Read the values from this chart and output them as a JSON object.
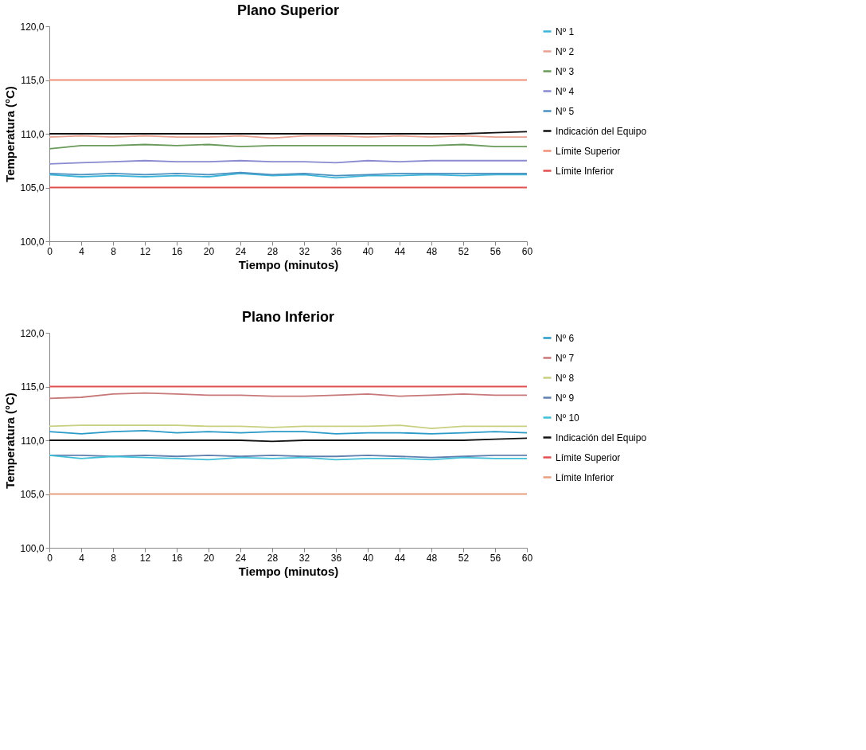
{
  "chart_data": [
    {
      "type": "line",
      "title": "Plano Superior",
      "xlabel": "Tiempo (minutos)",
      "ylabel": "Temperatura (°C)",
      "legend": "right",
      "grid": false,
      "x": [
        0,
        4,
        8,
        12,
        16,
        20,
        24,
        28,
        32,
        36,
        40,
        44,
        48,
        52,
        56,
        60
      ],
      "xlim": [
        0,
        60
      ],
      "xticks": [
        0,
        4,
        8,
        12,
        16,
        20,
        24,
        28,
        32,
        36,
        40,
        44,
        48,
        52,
        56,
        60
      ],
      "ylim": [
        100,
        120
      ],
      "yticks": [
        {
          "value": 100,
          "label": "100,0"
        },
        {
          "value": 105,
          "label": "105,0"
        },
        {
          "value": 110,
          "label": "110,0"
        },
        {
          "value": 115,
          "label": "115,0"
        },
        {
          "value": 120,
          "label": "120,0"
        }
      ],
      "series": [
        {
          "name": "Nº 1",
          "color": "#3cb4d8",
          "values": [
            106.2,
            106.0,
            106.1,
            106.0,
            106.1,
            106.0,
            106.3,
            106.1,
            106.2,
            105.9,
            106.1,
            106.1,
            106.2,
            106.1,
            106.2,
            106.2
          ]
        },
        {
          "name": "Nº 2",
          "color": "#e8a090",
          "values": [
            109.7,
            109.8,
            109.7,
            109.8,
            109.7,
            109.7,
            109.8,
            109.6,
            109.8,
            109.8,
            109.7,
            109.8,
            109.7,
            109.8,
            109.7,
            109.7
          ]
        },
        {
          "name": "Nº 3",
          "color": "#6a9a5a",
          "values": [
            108.6,
            108.9,
            108.9,
            109.0,
            108.9,
            109.0,
            108.8,
            108.9,
            108.9,
            108.9,
            108.9,
            108.9,
            108.9,
            109.0,
            108.8,
            108.8
          ]
        },
        {
          "name": "Nº 4",
          "color": "#8a8ad0",
          "values": [
            107.2,
            107.3,
            107.4,
            107.5,
            107.4,
            107.4,
            107.5,
            107.4,
            107.4,
            107.3,
            107.5,
            107.4,
            107.5,
            107.5,
            107.5,
            107.5
          ]
        },
        {
          "name": "Nº 5",
          "color": "#4a90c0",
          "values": [
            106.3,
            106.2,
            106.3,
            106.2,
            106.3,
            106.2,
            106.4,
            106.2,
            106.3,
            106.1,
            106.2,
            106.3,
            106.3,
            106.3,
            106.3,
            106.3
          ]
        },
        {
          "name": "Indicación del Equipo",
          "color": "#111111",
          "values": [
            110.0,
            110.0,
            110.0,
            110.0,
            110.0,
            110.0,
            110.0,
            110.0,
            110.0,
            110.0,
            110.0,
            110.0,
            110.0,
            110.0,
            110.1,
            110.2
          ]
        },
        {
          "name": "Límite Superior",
          "color": "#f0907a",
          "values": [
            115,
            115,
            115,
            115,
            115,
            115,
            115,
            115,
            115,
            115,
            115,
            115,
            115,
            115,
            115,
            115
          ]
        },
        {
          "name": "Límite Inferior",
          "color": "#e05050",
          "values": [
            105,
            105,
            105,
            105,
            105,
            105,
            105,
            105,
            105,
            105,
            105,
            105,
            105,
            105,
            105,
            105
          ]
        }
      ]
    },
    {
      "type": "line",
      "title": "Plano Inferior",
      "xlabel": "Tiempo (minutos)",
      "ylabel": "Temperatura (°C)",
      "legend": "right",
      "grid": false,
      "x": [
        0,
        4,
        8,
        12,
        16,
        20,
        24,
        28,
        32,
        36,
        40,
        44,
        48,
        52,
        56,
        60
      ],
      "xlim": [
        0,
        60
      ],
      "xticks": [
        0,
        4,
        8,
        12,
        16,
        20,
        24,
        28,
        32,
        36,
        40,
        44,
        48,
        52,
        56,
        60
      ],
      "ylim": [
        100,
        120
      ],
      "yticks": [
        {
          "value": 100,
          "label": "100,0"
        },
        {
          "value": 105,
          "label": "105,0"
        },
        {
          "value": 110,
          "label": "110,0"
        },
        {
          "value": 115,
          "label": "115,0"
        },
        {
          "value": 120,
          "label": "120,0"
        }
      ],
      "series": [
        {
          "name": "Nº 6",
          "color": "#2a9ac8",
          "values": [
            110.8,
            110.6,
            110.8,
            110.9,
            110.7,
            110.8,
            110.7,
            110.8,
            110.8,
            110.6,
            110.7,
            110.7,
            110.6,
            110.7,
            110.8,
            110.7
          ]
        },
        {
          "name": "Nº 7",
          "color": "#c87878",
          "values": [
            113.9,
            114.0,
            114.3,
            114.4,
            114.3,
            114.2,
            114.2,
            114.1,
            114.1,
            114.2,
            114.3,
            114.1,
            114.2,
            114.3,
            114.2,
            114.2
          ]
        },
        {
          "name": "Nº 8",
          "color": "#c8d080",
          "values": [
            111.3,
            111.4,
            111.4,
            111.4,
            111.4,
            111.3,
            111.3,
            111.2,
            111.3,
            111.3,
            111.3,
            111.4,
            111.1,
            111.3,
            111.3,
            111.3
          ]
        },
        {
          "name": "Nº 9",
          "color": "#6080b0",
          "values": [
            108.6,
            108.6,
            108.5,
            108.6,
            108.5,
            108.6,
            108.5,
            108.6,
            108.5,
            108.5,
            108.6,
            108.5,
            108.4,
            108.5,
            108.6,
            108.6
          ]
        },
        {
          "name": "Nº 10",
          "color": "#40c0d8",
          "values": [
            108.6,
            108.3,
            108.5,
            108.4,
            108.3,
            108.2,
            108.4,
            108.3,
            108.4,
            108.2,
            108.3,
            108.3,
            108.2,
            108.4,
            108.3,
            108.3
          ]
        },
        {
          "name": "Indicación del Equipo",
          "color": "#111111",
          "values": [
            110.0,
            110.0,
            110.0,
            110.0,
            110.0,
            110.0,
            110.0,
            109.9,
            110.0,
            110.0,
            110.0,
            110.0,
            110.0,
            110.0,
            110.1,
            110.2
          ]
        },
        {
          "name": "Límite Superior",
          "color": "#e05050",
          "values": [
            115,
            115,
            115,
            115,
            115,
            115,
            115,
            115,
            115,
            115,
            115,
            115,
            115,
            115,
            115,
            115
          ]
        },
        {
          "name": "Límite Inferior",
          "color": "#e8a080",
          "values": [
            105,
            105,
            105,
            105,
            105,
            105,
            105,
            105,
            105,
            105,
            105,
            105,
            105,
            105,
            105,
            105
          ]
        }
      ]
    }
  ]
}
